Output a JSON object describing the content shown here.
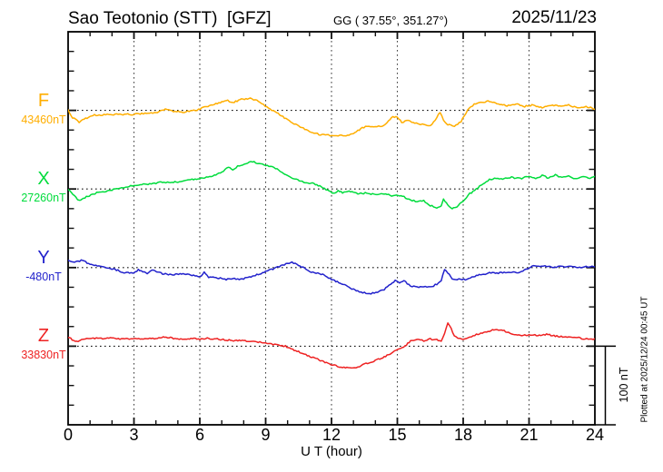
{
  "header": {
    "station": "Sao Teotonio (STT)  [GFZ]",
    "coords": "GG ( 37.55°, 351.27°)",
    "date": "2025/11/23"
  },
  "footer": {
    "plotted_at": "Plotted at 2025/12/24 00:45 UT"
  },
  "scale_bar": {
    "label": "100 nT",
    "nT": 100
  },
  "chart_data": {
    "type": "line",
    "title": "Sao Teotonio (STT) [GFZ] magnetogram 2025/11/23",
    "xlabel": "U T (hour)",
    "x_range": [
      0,
      24
    ],
    "x_ticks": [
      0,
      3,
      6,
      9,
      12,
      15,
      18,
      21,
      24
    ],
    "x_minor_tick_hours": 1,
    "grid": "vertical dotted lines every 3 hours; dotted horizontal baseline per component",
    "y_scale": "100 nT per division (scale bar at right)",
    "legend_position": "left margin, one colored label per component",
    "series": [
      {
        "name": "F",
        "baseline": 43460,
        "baseline_label": "43460nT",
        "unit": "nT",
        "color": "#FFAE00",
        "points": [
          [
            0,
            43460
          ],
          [
            0.2,
            43451
          ],
          [
            0.5,
            43445
          ],
          [
            0.8,
            43450
          ],
          [
            1.2,
            43454
          ],
          [
            2,
            43455
          ],
          [
            3,
            43455
          ],
          [
            4,
            43457
          ],
          [
            4.5,
            43462
          ],
          [
            4.8,
            43459
          ],
          [
            5.3,
            43458
          ],
          [
            5.8,
            43460
          ],
          [
            6.3,
            43465
          ],
          [
            6.8,
            43469
          ],
          [
            7.2,
            43473
          ],
          [
            7.5,
            43470
          ],
          [
            7.9,
            43474
          ],
          [
            8.3,
            43475
          ],
          [
            8.6,
            43473
          ],
          [
            8.9,
            43467
          ],
          [
            9.2,
            43462
          ],
          [
            9.5,
            43457
          ],
          [
            10,
            43448
          ],
          [
            10.5,
            43440
          ],
          [
            11,
            43433
          ],
          [
            11.5,
            43429
          ],
          [
            12,
            43428
          ],
          [
            12.6,
            43428
          ],
          [
            13,
            43430
          ],
          [
            13.4,
            43438
          ],
          [
            13.7,
            43440
          ],
          [
            14,
            43439
          ],
          [
            14.3,
            43440
          ],
          [
            14.6,
            43446
          ],
          [
            14.8,
            43452
          ],
          [
            15,
            43451
          ],
          [
            15.2,
            43445
          ],
          [
            15.5,
            43447
          ],
          [
            15.8,
            43444
          ],
          [
            16.2,
            43442
          ],
          [
            16.5,
            43440
          ],
          [
            16.8,
            43451
          ],
          [
            16.95,
            43458
          ],
          [
            17.1,
            43448
          ],
          [
            17.3,
            43442
          ],
          [
            17.6,
            43440
          ],
          [
            17.9,
            43446
          ],
          [
            18.2,
            43460
          ],
          [
            18.5,
            43468
          ],
          [
            18.8,
            43470
          ],
          [
            19.2,
            43472
          ],
          [
            19.6,
            43468
          ],
          [
            20,
            43466
          ],
          [
            20.4,
            43468
          ],
          [
            20.8,
            43465
          ],
          [
            21.2,
            43467
          ],
          [
            21.6,
            43463
          ],
          [
            22,
            43467
          ],
          [
            22.4,
            43465
          ],
          [
            22.8,
            43467
          ],
          [
            23.2,
            43463
          ],
          [
            23.6,
            43465
          ],
          [
            24,
            43462
          ]
        ]
      },
      {
        "name": "X",
        "baseline": 27260,
        "baseline_label": "27260nT",
        "unit": "nT",
        "color": "#00DC3C",
        "points": [
          [
            0,
            27260
          ],
          [
            0.5,
            27245
          ],
          [
            0.9,
            27251
          ],
          [
            1.3,
            27255
          ],
          [
            2,
            27259
          ],
          [
            2.5,
            27262
          ],
          [
            3,
            27265
          ],
          [
            3.5,
            27266
          ],
          [
            4,
            27267
          ],
          [
            4.3,
            27269
          ],
          [
            4.6,
            27268
          ],
          [
            5,
            27269
          ],
          [
            5.5,
            27272
          ],
          [
            6,
            27273
          ],
          [
            6.3,
            27275
          ],
          [
            6.6,
            27277
          ],
          [
            7,
            27281
          ],
          [
            7.3,
            27288
          ],
          [
            7.5,
            27285
          ],
          [
            7.8,
            27290
          ],
          [
            8.1,
            27292
          ],
          [
            8.4,
            27295
          ],
          [
            8.7,
            27292
          ],
          [
            9,
            27290
          ],
          [
            9.3,
            27289
          ],
          [
            9.6,
            27284
          ],
          [
            10,
            27277
          ],
          [
            10.4,
            27272
          ],
          [
            10.8,
            27268
          ],
          [
            11.2,
            27267
          ],
          [
            11.6,
            27262
          ],
          [
            11.9,
            27257
          ],
          [
            12.1,
            27254
          ],
          [
            12.3,
            27258
          ],
          [
            12.5,
            27255
          ],
          [
            12.8,
            27257
          ],
          [
            13.2,
            27254
          ],
          [
            13.6,
            27255
          ],
          [
            14,
            27253
          ],
          [
            14.4,
            27254
          ],
          [
            14.8,
            27251
          ],
          [
            15.1,
            27252
          ],
          [
            15.3,
            27250
          ],
          [
            15.6,
            27246
          ],
          [
            15.9,
            27244
          ],
          [
            16.2,
            27245
          ],
          [
            16.5,
            27239
          ],
          [
            16.8,
            27236
          ],
          [
            17,
            27238
          ],
          [
            17.1,
            27247
          ],
          [
            17.3,
            27239
          ],
          [
            17.5,
            27235
          ],
          [
            17.7,
            27237
          ],
          [
            18,
            27245
          ],
          [
            18.3,
            27254
          ],
          [
            18.6,
            27260
          ],
          [
            18.9,
            27267
          ],
          [
            19.2,
            27272
          ],
          [
            19.5,
            27274
          ],
          [
            19.8,
            27273
          ],
          [
            20.2,
            27275
          ],
          [
            20.6,
            27273
          ],
          [
            21,
            27276
          ],
          [
            21.3,
            27273
          ],
          [
            21.6,
            27277
          ],
          [
            21.9,
            27274
          ],
          [
            22.2,
            27278
          ],
          [
            22.5,
            27274
          ],
          [
            22.8,
            27277
          ],
          [
            23.1,
            27273
          ],
          [
            23.4,
            27276
          ],
          [
            23.7,
            27274
          ],
          [
            24,
            27275
          ]
        ]
      },
      {
        "name": "Y",
        "baseline": -480,
        "baseline_label": "-480nT",
        "unit": "nT",
        "color": "#2222CC",
        "points": [
          [
            0,
            -471
          ],
          [
            0.3,
            -473
          ],
          [
            0.6,
            -471
          ],
          [
            1,
            -475
          ],
          [
            1.4,
            -478
          ],
          [
            1.8,
            -480
          ],
          [
            2.2,
            -483
          ],
          [
            2.6,
            -487
          ],
          [
            3,
            -486
          ],
          [
            3.2,
            -483
          ],
          [
            3.6,
            -487
          ],
          [
            3.9,
            -483
          ],
          [
            4.3,
            -488
          ],
          [
            4.7,
            -489
          ],
          [
            5.1,
            -488
          ],
          [
            5.5,
            -489
          ],
          [
            6,
            -492
          ],
          [
            6.2,
            -486
          ],
          [
            6.4,
            -492
          ],
          [
            6.8,
            -493
          ],
          [
            7.2,
            -495
          ],
          [
            7.5,
            -494
          ],
          [
            7.8,
            -495
          ],
          [
            8.2,
            -493
          ],
          [
            8.6,
            -489
          ],
          [
            9,
            -485
          ],
          [
            9.4,
            -481
          ],
          [
            9.7,
            -478
          ],
          [
            10,
            -475
          ],
          [
            10.2,
            -473
          ],
          [
            10.5,
            -477
          ],
          [
            10.7,
            -480
          ],
          [
            11,
            -485
          ],
          [
            11.3,
            -487
          ],
          [
            11.6,
            -489
          ],
          [
            12,
            -495
          ],
          [
            12.4,
            -500
          ],
          [
            12.8,
            -505
          ],
          [
            13.2,
            -510
          ],
          [
            13.5,
            -512
          ],
          [
            13.8,
            -513
          ],
          [
            14.1,
            -511
          ],
          [
            14.4,
            -508
          ],
          [
            14.7,
            -501
          ],
          [
            14.9,
            -497
          ],
          [
            15.1,
            -500
          ],
          [
            15.3,
            -497
          ],
          [
            15.6,
            -503
          ],
          [
            15.9,
            -505
          ],
          [
            16.2,
            -504
          ],
          [
            16.5,
            -505
          ],
          [
            16.8,
            -501
          ],
          [
            17,
            -496
          ],
          [
            17.15,
            -482
          ],
          [
            17.3,
            -487
          ],
          [
            17.5,
            -494
          ],
          [
            17.8,
            -495
          ],
          [
            18.1,
            -495
          ],
          [
            18.4,
            -492
          ],
          [
            18.8,
            -489
          ],
          [
            19.2,
            -487
          ],
          [
            19.6,
            -487
          ],
          [
            20,
            -486
          ],
          [
            20.5,
            -486
          ],
          [
            21,
            -481
          ],
          [
            21.2,
            -478
          ],
          [
            21.5,
            -479
          ],
          [
            21.8,
            -478
          ],
          [
            22.1,
            -480
          ],
          [
            22.4,
            -478
          ],
          [
            22.7,
            -479
          ],
          [
            23,
            -478
          ],
          [
            23.3,
            -480
          ],
          [
            23.6,
            -479
          ],
          [
            24,
            -479
          ]
        ]
      },
      {
        "name": "Z",
        "baseline": 33830,
        "baseline_label": "33830nT",
        "unit": "nT",
        "color": "#EE2222",
        "points": [
          [
            0,
            33842
          ],
          [
            0.25,
            33837
          ],
          [
            0.45,
            33835
          ],
          [
            0.7,
            33839
          ],
          [
            1,
            33840
          ],
          [
            1.5,
            33840
          ],
          [
            2,
            33840
          ],
          [
            2.5,
            33839
          ],
          [
            3,
            33840
          ],
          [
            3.5,
            33839
          ],
          [
            4,
            33840
          ],
          [
            4.4,
            33842
          ],
          [
            4.8,
            33840
          ],
          [
            5.2,
            33839
          ],
          [
            5.6,
            33840
          ],
          [
            6,
            33839
          ],
          [
            6.4,
            33840
          ],
          [
            6.8,
            33839
          ],
          [
            7.2,
            33838
          ],
          [
            7.6,
            33837
          ],
          [
            8,
            33837
          ],
          [
            8.4,
            33836
          ],
          [
            8.8,
            33835
          ],
          [
            9.2,
            33833
          ],
          [
            9.6,
            33831
          ],
          [
            9.9,
            33830
          ],
          [
            10.3,
            33825
          ],
          [
            10.7,
            33821
          ],
          [
            11.1,
            33816
          ],
          [
            11.5,
            33812
          ],
          [
            11.9,
            33807
          ],
          [
            12.2,
            33805
          ],
          [
            12.5,
            33803
          ],
          [
            12.9,
            33802
          ],
          [
            13.2,
            33803
          ],
          [
            13.5,
            33807
          ],
          [
            13.7,
            33809
          ],
          [
            14,
            33812
          ],
          [
            14.4,
            33816
          ],
          [
            14.8,
            33822
          ],
          [
            15.1,
            33827
          ],
          [
            15.35,
            33830
          ],
          [
            15.6,
            33837
          ],
          [
            15.9,
            33839
          ],
          [
            16.2,
            33837
          ],
          [
            16.5,
            33839
          ],
          [
            16.8,
            33838
          ],
          [
            17,
            33836
          ],
          [
            17.15,
            33847
          ],
          [
            17.3,
            33859
          ],
          [
            17.45,
            33853
          ],
          [
            17.6,
            33843
          ],
          [
            17.75,
            33840
          ],
          [
            18,
            33839
          ],
          [
            18.3,
            33842
          ],
          [
            18.6,
            33845
          ],
          [
            19,
            33848
          ],
          [
            19.4,
            33851
          ],
          [
            19.8,
            33850
          ],
          [
            20.2,
            33846
          ],
          [
            20.6,
            33844
          ],
          [
            21,
            33844
          ],
          [
            21.4,
            33844
          ],
          [
            21.8,
            33845
          ],
          [
            22.2,
            33843
          ],
          [
            22.6,
            33842
          ],
          [
            23,
            33842
          ],
          [
            23.4,
            33840
          ],
          [
            23.7,
            33839
          ],
          [
            24,
            33839
          ]
        ]
      }
    ]
  }
}
